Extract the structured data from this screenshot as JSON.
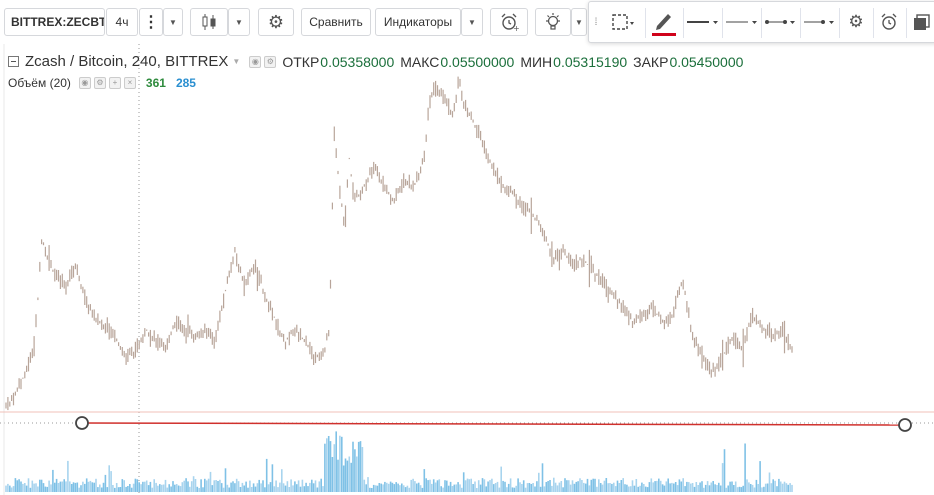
{
  "toolbar": {
    "symbol": "BITTREX:ZECBTC",
    "interval": "4ч",
    "compare_label": "Сравнить",
    "indicators_label": "Индикаторы",
    "icons": {
      "more": "vertical-dots-icon",
      "chart_type": "candlestick-icon",
      "settings": "gear-icon",
      "alert": "alarm-clock-icon",
      "ideas": "lightbulb-icon",
      "caret": "chevron-down-icon"
    }
  },
  "drawing_toolbar": {
    "icons": [
      "drag-grip-icon",
      "selection-area-icon",
      "pencil-icon",
      "line-style-icon",
      "thin-line-icon",
      "line-end-icon",
      "line-arrow-icon",
      "gear-icon",
      "alarm-clock-icon",
      "layers-icon"
    ]
  },
  "legend": {
    "title": "Zcash / Bitcoin, 240, BITTREX",
    "open_label": "ОТКР",
    "open_value": "0.05358000",
    "high_label": "МАКС",
    "high_value": "0.05500000",
    "low_label": "МИН",
    "low_value": "0.05315190",
    "close_label": "ЗАКР",
    "close_value": "0.05450000"
  },
  "volume": {
    "label": "Объём (20)",
    "value1": "361",
    "value2": "285"
  },
  "colors": {
    "candle": "#b8a59a",
    "volume_up": "#7fc1e6",
    "volume_down": "#a8d4ee",
    "trendline": "#d0302c",
    "accent_red": "#d0021b",
    "value_green": "#1b6f3b",
    "value_blue": "#2a8fd0"
  },
  "chart_data": {
    "type": "line",
    "price_path_norm": [
      [
        0,
        0.08
      ],
      [
        0.01,
        0.12
      ],
      [
        0.02,
        0.18
      ],
      [
        0.028,
        0.25
      ],
      [
        0.032,
        0.38
      ],
      [
        0.036,
        0.56
      ],
      [
        0.042,
        0.5
      ],
      [
        0.048,
        0.46
      ],
      [
        0.06,
        0.42
      ],
      [
        0.07,
        0.48
      ],
      [
        0.08,
        0.38
      ],
      [
        0.09,
        0.33
      ],
      [
        0.1,
        0.3
      ],
      [
        0.11,
        0.28
      ],
      [
        0.12,
        0.22
      ],
      [
        0.13,
        0.24
      ],
      [
        0.14,
        0.3
      ],
      [
        0.15,
        0.27
      ],
      [
        0.16,
        0.24
      ],
      [
        0.17,
        0.32
      ],
      [
        0.18,
        0.3
      ],
      [
        0.19,
        0.28
      ],
      [
        0.2,
        0.3
      ],
      [
        0.21,
        0.26
      ],
      [
        0.22,
        0.4
      ],
      [
        0.23,
        0.52
      ],
      [
        0.24,
        0.42
      ],
      [
        0.25,
        0.48
      ],
      [
        0.26,
        0.4
      ],
      [
        0.27,
        0.33
      ],
      [
        0.28,
        0.26
      ],
      [
        0.29,
        0.3
      ],
      [
        0.3,
        0.27
      ],
      [
        0.31,
        0.22
      ],
      [
        0.32,
        0.24
      ],
      [
        0.325,
        0.3
      ],
      [
        0.33,
        0.85
      ],
      [
        0.335,
        0.7
      ],
      [
        0.34,
        0.6
      ],
      [
        0.345,
        0.78
      ],
      [
        0.35,
        0.66
      ],
      [
        0.36,
        0.7
      ],
      [
        0.37,
        0.76
      ],
      [
        0.38,
        0.7
      ],
      [
        0.39,
        0.66
      ],
      [
        0.4,
        0.72
      ],
      [
        0.41,
        0.7
      ],
      [
        0.42,
        0.78
      ],
      [
        0.425,
        0.92
      ],
      [
        0.43,
        0.98
      ],
      [
        0.44,
        0.95
      ],
      [
        0.45,
        0.9
      ],
      [
        0.455,
        1.0
      ],
      [
        0.46,
        0.93
      ],
      [
        0.47,
        0.88
      ],
      [
        0.48,
        0.82
      ],
      [
        0.49,
        0.75
      ],
      [
        0.5,
        0.7
      ],
      [
        0.51,
        0.68
      ],
      [
        0.52,
        0.64
      ],
      [
        0.53,
        0.62
      ],
      [
        0.54,
        0.58
      ],
      [
        0.55,
        0.5
      ],
      [
        0.56,
        0.52
      ],
      [
        0.57,
        0.48
      ],
      [
        0.58,
        0.5
      ],
      [
        0.59,
        0.46
      ],
      [
        0.6,
        0.44
      ],
      [
        0.61,
        0.4
      ],
      [
        0.62,
        0.36
      ],
      [
        0.63,
        0.32
      ],
      [
        0.64,
        0.34
      ],
      [
        0.65,
        0.36
      ],
      [
        0.66,
        0.32
      ],
      [
        0.67,
        0.34
      ],
      [
        0.68,
        0.44
      ],
      [
        0.685,
        0.36
      ],
      [
        0.69,
        0.28
      ],
      [
        0.7,
        0.22
      ],
      [
        0.71,
        0.18
      ],
      [
        0.72,
        0.22
      ],
      [
        0.73,
        0.28
      ],
      [
        0.74,
        0.24
      ],
      [
        0.75,
        0.34
      ],
      [
        0.76,
        0.3
      ],
      [
        0.77,
        0.28
      ],
      [
        0.78,
        0.3
      ],
      [
        0.79,
        0.24
      ]
    ],
    "series": [
      {
        "values_kind": "price",
        "last_close": 0.0545
      },
      {
        "values_kind": "volume"
      }
    ],
    "horizontal_line_norm_y": 0.225,
    "trendline": {
      "start_norm": [
        0.09,
        0.215
      ],
      "end_norm": [
        0.98,
        0.213
      ]
    }
  }
}
